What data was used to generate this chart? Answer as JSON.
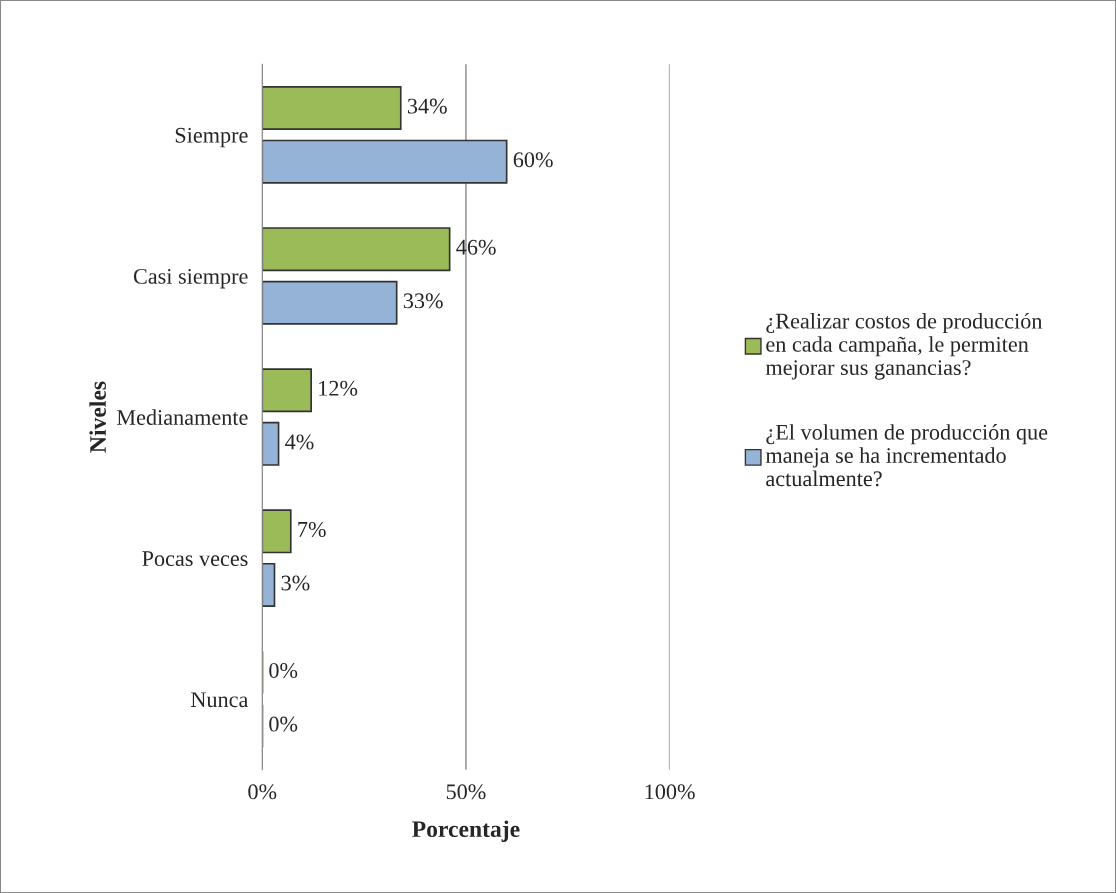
{
  "chart_data": {
    "type": "bar",
    "orientation": "horizontal",
    "xlabel": "Porcentaje",
    "ylabel": "Niveles",
    "categories": [
      "Siempre",
      "Casi siempre",
      "Medianamente",
      "Pocas veces",
      "Nunca"
    ],
    "series": [
      {
        "name": "¿Realizar costos de producción\nen cada campaña, le permiten\nmejorar sus ganancias?",
        "color": "#9bbb59",
        "values": [
          34,
          46,
          12,
          7,
          0
        ],
        "value_labels": [
          "34%",
          "46%",
          "12%",
          "7%",
          "0%"
        ]
      },
      {
        "name": "¿El volumen de producción que\nmaneja se ha incrementado\nactualmente?",
        "color": "#95b3d7",
        "values": [
          60,
          33,
          4,
          3,
          0
        ],
        "value_labels": [
          "60%",
          "33%",
          "4%",
          "3%",
          "0%"
        ]
      }
    ],
    "xlim": [
      0,
      100
    ],
    "xticks": [
      {
        "value": 0,
        "label": "0%"
      },
      {
        "value": 50,
        "label": "50%"
      },
      {
        "value": 100,
        "label": "100%"
      }
    ],
    "grid": "x",
    "legend": "right"
  }
}
